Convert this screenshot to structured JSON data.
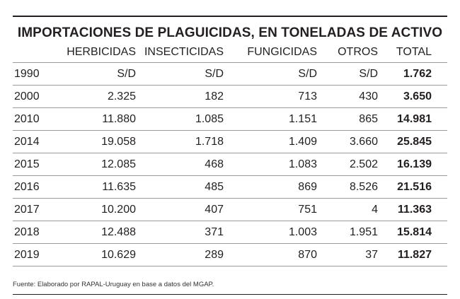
{
  "title": "IMPORTACIONES DE PLAGUICIDAS, EN TONELADAS DE ACTIVO",
  "columns": {
    "year": "",
    "herbicidas": "HERBICIDAS",
    "insecticidas": "INSECTICIDAS",
    "fungicidas": "FUNGICIDAS",
    "otros": "OTROS",
    "total": "TOTAL"
  },
  "rows": [
    {
      "year": "1990",
      "herbicidas": "S/D",
      "insecticidas": "S/D",
      "fungicidas": "S/D",
      "otros": "S/D",
      "total": "1.762"
    },
    {
      "year": "2000",
      "herbicidas": "2.325",
      "insecticidas": "182",
      "fungicidas": "713",
      "otros": "430",
      "total": "3.650"
    },
    {
      "year": "2010",
      "herbicidas": "11.880",
      "insecticidas": "1.085",
      "fungicidas": "1.151",
      "otros": "865",
      "total": "14.981"
    },
    {
      "year": "2014",
      "herbicidas": "19.058",
      "insecticidas": "1.718",
      "fungicidas": "1.409",
      "otros": "3.660",
      "total": "25.845"
    },
    {
      "year": "2015",
      "herbicidas": "12.085",
      "insecticidas": "468",
      "fungicidas": "1.083",
      "otros": "2.502",
      "total": "16.139"
    },
    {
      "year": "2016",
      "herbicidas": "11.635",
      "insecticidas": "485",
      "fungicidas": "869",
      "otros": "8.526",
      "total": "21.516"
    },
    {
      "year": "2017",
      "herbicidas": "10.200",
      "insecticidas": "407",
      "fungicidas": "751",
      "otros": "4",
      "total": "11.363"
    },
    {
      "year": "2018",
      "herbicidas": "12.488",
      "insecticidas": "371",
      "fungicidas": "1.003",
      "otros": "1.951",
      "total": "15.814"
    },
    {
      "year": "2019",
      "herbicidas": "10.629",
      "insecticidas": "289",
      "fungicidas": "870",
      "otros": "37",
      "total": "11.827"
    }
  ],
  "footnote": "Fuente: Elaborado por RAPAL-Uruguay en base a datos del MGAP."
}
